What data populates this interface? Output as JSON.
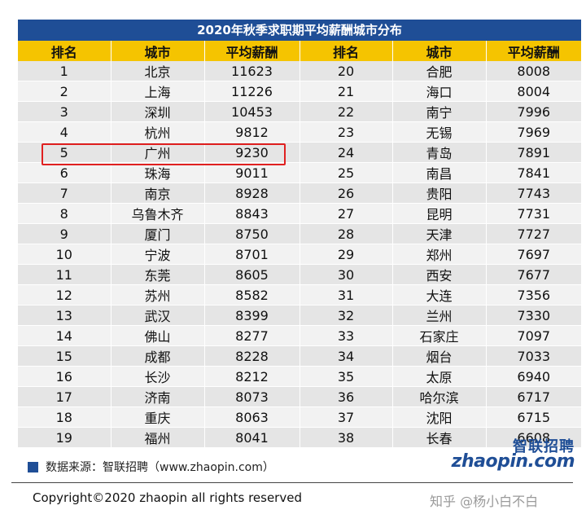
{
  "chart_data": {
    "type": "table",
    "title": "2020年秋季求职期平均薪酬城市分布",
    "columns": [
      "排名",
      "城市",
      "平均薪酬",
      "排名",
      "城市",
      "平均薪酬"
    ],
    "rows": [
      [
        "1",
        "北京",
        "11623",
        "20",
        "合肥",
        "8008"
      ],
      [
        "2",
        "上海",
        "11226",
        "21",
        "海口",
        "8004"
      ],
      [
        "3",
        "深圳",
        "10453",
        "22",
        "南宁",
        "7996"
      ],
      [
        "4",
        "杭州",
        "9812",
        "23",
        "无锡",
        "7969"
      ],
      [
        "5",
        "广州",
        "9230",
        "24",
        "青岛",
        "7891"
      ],
      [
        "6",
        "珠海",
        "9011",
        "25",
        "南昌",
        "7841"
      ],
      [
        "7",
        "南京",
        "8928",
        "26",
        "贵阳",
        "7743"
      ],
      [
        "8",
        "乌鲁木齐",
        "8843",
        "27",
        "昆明",
        "7731"
      ],
      [
        "9",
        "厦门",
        "8750",
        "28",
        "天津",
        "7727"
      ],
      [
        "10",
        "宁波",
        "8701",
        "29",
        "郑州",
        "7697"
      ],
      [
        "11",
        "东莞",
        "8605",
        "30",
        "西安",
        "7677"
      ],
      [
        "12",
        "苏州",
        "8582",
        "31",
        "大连",
        "7356"
      ],
      [
        "13",
        "武汉",
        "8399",
        "32",
        "兰州",
        "7330"
      ],
      [
        "14",
        "佛山",
        "8277",
        "33",
        "石家庄",
        "7097"
      ],
      [
        "15",
        "成都",
        "8228",
        "34",
        "烟台",
        "7033"
      ],
      [
        "16",
        "长沙",
        "8212",
        "35",
        "太原",
        "6940"
      ],
      [
        "17",
        "济南",
        "8073",
        "36",
        "哈尔滨",
        "6717"
      ],
      [
        "18",
        "重庆",
        "8063",
        "37",
        "沈阳",
        "6715"
      ],
      [
        "19",
        "福州",
        "8041",
        "38",
        "长春",
        "6608"
      ]
    ],
    "highlighted_row": 4
  },
  "colors": {
    "title_bg": "#1f4e96",
    "header_bg": "#f5c400",
    "row_odd": "#e5e5e5",
    "row_even": "#f2f2f2",
    "highlight": "#e02020"
  },
  "source": "数据来源：智联招聘（www.zhaopin.com）",
  "logo": {
    "cn": "智联招聘",
    "en": "zhaopin.com"
  },
  "copyright": "Copyright©2020 zhaopin all rights reserved",
  "watermark": "知乎 @杨小白不白"
}
